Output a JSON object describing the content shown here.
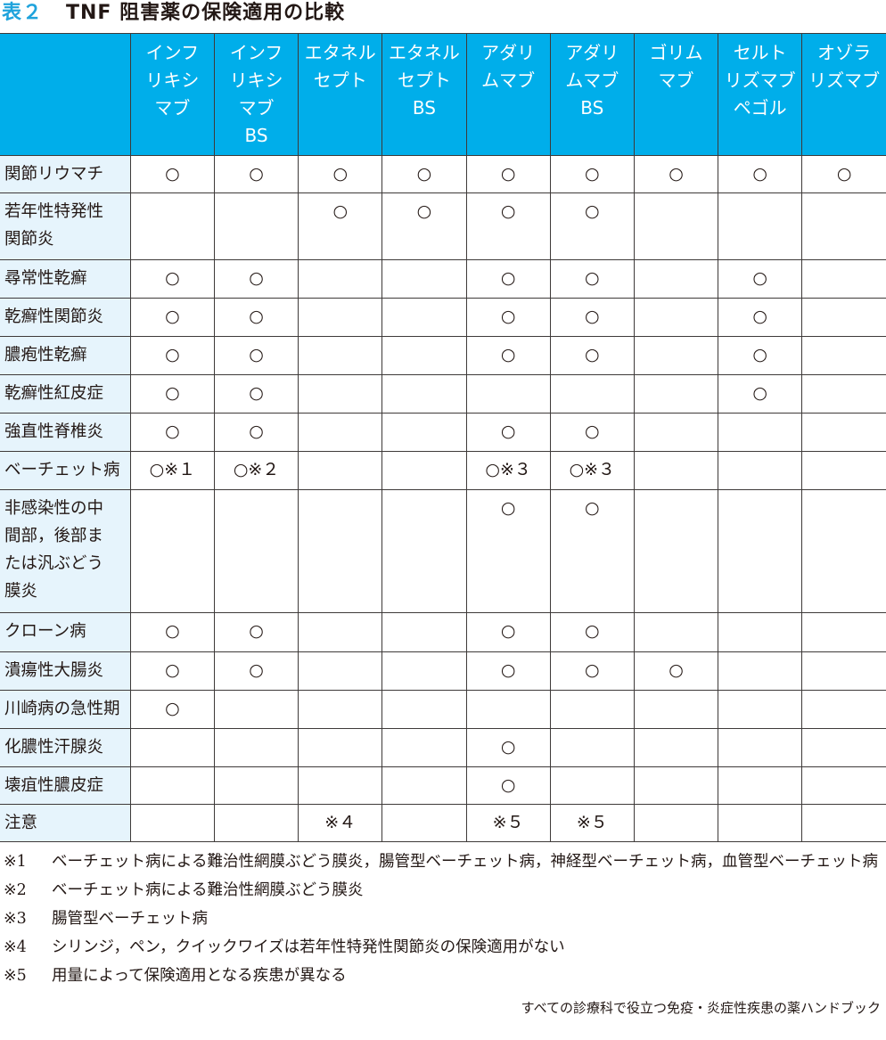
{
  "title": {
    "number": "表２",
    "text": "TNF 阻害薬の保険適用の比較"
  },
  "colors": {
    "header": "#00aeea",
    "label_bg": "#e6f4fc",
    "title_number": "#1fa3dc"
  },
  "columns": [
    "インフ\nリキシ\nマブ",
    "インフ\nリキシ\nマブ\nBS",
    "エタネル\nセプト",
    "エタネル\nセプト\nBS",
    "アダリ\nムマブ",
    "アダリ\nムマブ\nBS",
    "ゴリム\nマブ",
    "セルト\nリズマブ\nペゴル",
    "オゾラ\nリズマブ"
  ],
  "rows": [
    {
      "label": "関節リウマチ",
      "cells": [
        "○",
        "○",
        "○",
        "○",
        "○",
        "○",
        "○",
        "○",
        "○"
      ]
    },
    {
      "label": "若年性特発性\n関節炎",
      "cells": [
        "",
        "",
        "○",
        "○",
        "○",
        "○",
        "",
        "",
        ""
      ]
    },
    {
      "label": "尋常性乾癬",
      "cells": [
        "○",
        "○",
        "",
        "",
        "○",
        "○",
        "",
        "○",
        ""
      ]
    },
    {
      "label": "乾癬性関節炎",
      "cells": [
        "○",
        "○",
        "",
        "",
        "○",
        "○",
        "",
        "○",
        ""
      ]
    },
    {
      "label": "膿疱性乾癬",
      "cells": [
        "○",
        "○",
        "",
        "",
        "○",
        "○",
        "",
        "○",
        ""
      ]
    },
    {
      "label": "乾癬性紅皮症",
      "cells": [
        "○",
        "○",
        "",
        "",
        "",
        "",
        "",
        "○",
        ""
      ]
    },
    {
      "label": "強直性脊椎炎",
      "cells": [
        "○",
        "○",
        "",
        "",
        "○",
        "○",
        "",
        "",
        ""
      ]
    },
    {
      "label": "ベーチェット病",
      "cells": [
        "○※１",
        "○※２",
        "",
        "",
        "○※３",
        "○※３",
        "",
        "",
        ""
      ]
    },
    {
      "label": "非感染性の中\n間部，後部ま\nたは汎ぶどう\n膜炎",
      "cells": [
        "",
        "",
        "",
        "",
        "○",
        "○",
        "",
        "",
        ""
      ]
    },
    {
      "label": "クローン病",
      "cells": [
        "○",
        "○",
        "",
        "",
        "○",
        "○",
        "",
        "",
        ""
      ]
    },
    {
      "label": "潰瘍性大腸炎",
      "cells": [
        "○",
        "○",
        "",
        "",
        "○",
        "○",
        "○",
        "",
        ""
      ]
    },
    {
      "label": "川崎病の急性期",
      "cells": [
        "○",
        "",
        "",
        "",
        "",
        "",
        "",
        "",
        ""
      ]
    },
    {
      "label": "化膿性汗腺炎",
      "cells": [
        "",
        "",
        "",
        "",
        "○",
        "",
        "",
        "",
        ""
      ]
    },
    {
      "label": "壊疽性膿皮症",
      "cells": [
        "",
        "",
        "",
        "",
        "○",
        "",
        "",
        "",
        ""
      ]
    },
    {
      "label": "注意",
      "cells": [
        "",
        "",
        "※４",
        "",
        "※５",
        "※５",
        "",
        "",
        ""
      ]
    }
  ],
  "notes": [
    {
      "key": "※1",
      "text": "ベーチェット病による難治性網膜ぶどう膜炎，腸管型ベーチェット病，神経型ベーチェット病，血管型ベーチェット病"
    },
    {
      "key": "※2",
      "text": "ベーチェット病による難治性網膜ぶどう膜炎"
    },
    {
      "key": "※3",
      "text": "腸管型ベーチェット病"
    },
    {
      "key": "※4",
      "text": "シリンジ，ペン，クイックワイズは若年性特発性関節炎の保険適用がない"
    },
    {
      "key": "※5",
      "text": "用量によって保険適用となる疾患が異なる"
    }
  ],
  "footer": "すべての診療科で役立つ免疫・炎症性疾患の薬ハンドブック"
}
